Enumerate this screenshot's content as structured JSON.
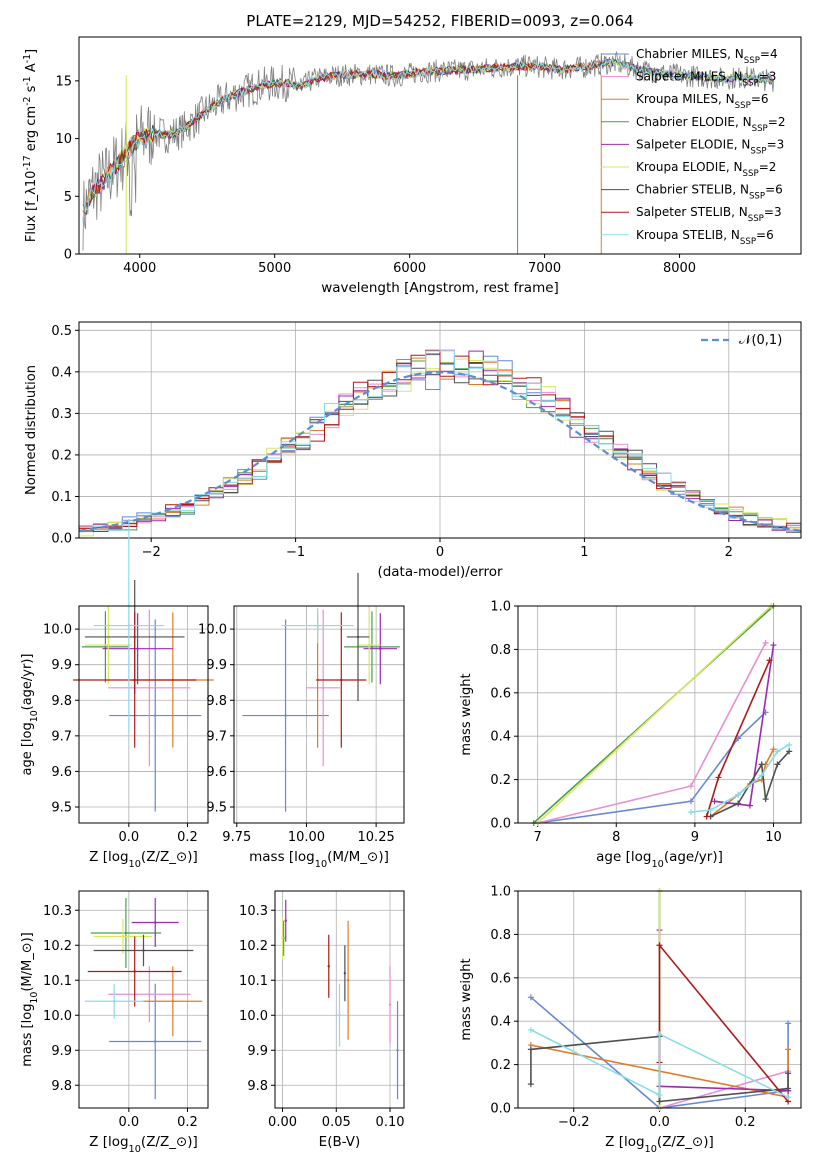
{
  "page_title": "PLATE=2129, MJD=54252, FIBERID=0093, z=0.064",
  "chart_data": [
    {
      "type": "line",
      "id": "spectrum",
      "xlabel": "wavelength [Angstrom, rest frame]",
      "ylabel": "Flux [f$_\\lambda$10$^{-17}$ erg cm$^{-2}$ s$^{-1}$ A$^{-1}$]",
      "xlim": [
        3550,
        8900
      ],
      "ylim": [
        0,
        18.8
      ],
      "x_ticks": [
        "4000",
        "5000",
        "6000",
        "7000",
        "8000"
      ],
      "y_ticks": [
        "0",
        "5",
        "10",
        "15"
      ],
      "grid": false,
      "legend_position": "top-right",
      "data_color": "#808080",
      "data_envelope": [
        {
          "x": 3580,
          "y": 3.5
        },
        {
          "x": 3650,
          "y": 5.5
        },
        {
          "x": 3750,
          "y": 6.5
        },
        {
          "x": 3850,
          "y": 8.0
        },
        {
          "x": 3950,
          "y": 9.5
        },
        {
          "x": 4000,
          "y": 10.0
        },
        {
          "x": 4100,
          "y": 10.5
        },
        {
          "x": 4200,
          "y": 10.3
        },
        {
          "x": 4300,
          "y": 10.6
        },
        {
          "x": 4400,
          "y": 11.5
        },
        {
          "x": 4500,
          "y": 12.5
        },
        {
          "x": 4600,
          "y": 13.2
        },
        {
          "x": 4700,
          "y": 13.8
        },
        {
          "x": 4800,
          "y": 14.2
        },
        {
          "x": 4900,
          "y": 14.6
        },
        {
          "x": 5000,
          "y": 14.8
        },
        {
          "x": 5100,
          "y": 14.8
        },
        {
          "x": 5200,
          "y": 14.5
        },
        {
          "x": 5300,
          "y": 15.2
        },
        {
          "x": 5500,
          "y": 15.5
        },
        {
          "x": 5700,
          "y": 15.6
        },
        {
          "x": 5900,
          "y": 15.4
        },
        {
          "x": 6100,
          "y": 15.8
        },
        {
          "x": 6300,
          "y": 15.9
        },
        {
          "x": 6500,
          "y": 16.0
        },
        {
          "x": 6700,
          "y": 16.2
        },
        {
          "x": 6900,
          "y": 16.3
        },
        {
          "x": 7100,
          "y": 16.0
        },
        {
          "x": 7300,
          "y": 16.2
        },
        {
          "x": 7500,
          "y": 16.6
        },
        {
          "x": 7700,
          "y": 16.0
        },
        {
          "x": 7900,
          "y": 15.6
        },
        {
          "x": 8100,
          "y": 15.4
        },
        {
          "x": 8300,
          "y": 15.2
        },
        {
          "x": 8500,
          "y": 15.3
        },
        {
          "x": 8700,
          "y": 15.0
        }
      ],
      "series": [
        {
          "name": "Chabrier MILES, N$_{SSP}$=4",
          "color": "#6688d6"
        },
        {
          "name": "Salpeter MILES, N$_{SSP}$=3",
          "color": "#e68fd3"
        },
        {
          "name": "Kroupa MILES, N$_{SSP}$=6",
          "color": "#e07b28"
        },
        {
          "name": "Chabrier ELODIE, N$_{SSP}$=2",
          "color": "#4a9e4a"
        },
        {
          "name": "Salpeter ELODIE, N$_{SSP}$=3",
          "color": "#9a2bb0"
        },
        {
          "name": "Kroupa ELODIE, N$_{SSP}$=2",
          "color": "#d5e860"
        },
        {
          "name": "Chabrier STELIB, N$_{SSP}$=6",
          "color": "#505050"
        },
        {
          "name": "Salpeter STELIB, N$_{SSP}$=3",
          "color": "#b01818"
        },
        {
          "name": "Kroupa STELIB, N$_{SSP}$=6",
          "color": "#88dde8"
        }
      ]
    },
    {
      "type": "area",
      "id": "residuals",
      "xlabel": "(data-model)/error",
      "ylabel": "Normed distribution",
      "xlim": [
        -2.5,
        2.5
      ],
      "ylim": [
        0,
        0.52
      ],
      "x_ticks": [
        "−2",
        "−1",
        "0",
        "1",
        "2"
      ],
      "y_ticks": [
        "0.0",
        "0.1",
        "0.2",
        "0.3",
        "0.4",
        "0.5"
      ],
      "grid": true,
      "legend_position": "top-right",
      "reference_curve": {
        "name": "$\\mathcal{N}(0,1)$",
        "color": "#5b8ed6"
      },
      "bin_width": 0.1,
      "bin_start": -2.5
    },
    {
      "type": "scatter",
      "id": "age-vs-Z",
      "xlabel": "Z [log$_{10}$($Z/Z_\\odot$)]",
      "ylabel": "age  [log$_{10}$($age/yr$)]",
      "xlim": [
        -0.17,
        0.27
      ],
      "ylim": [
        9.455,
        10.065
      ],
      "x_ticks": [
        "0.0",
        "0.2"
      ],
      "y_ticks": [
        "9.5",
        "9.6",
        "9.7",
        "9.8",
        "9.9",
        "10.0"
      ],
      "grid": true,
      "points": [
        {
          "x": 0.09,
          "y": 9.757,
          "xerr": 0.157,
          "yerr": 0.27,
          "color": "#6688d6"
        },
        {
          "x": 0.07,
          "y": 9.835,
          "xerr": 0.14,
          "yerr": 0.22,
          "color": "#e68fd3"
        },
        {
          "x": 0.15,
          "y": 9.857,
          "xerr": 0.14,
          "yerr": 0.19,
          "color": "#e07b28"
        },
        {
          "x": -0.08,
          "y": 9.95,
          "xerr": 0.08,
          "yerr": 0.1,
          "color": "#4a9e4a"
        },
        {
          "x": 0.03,
          "y": 9.945,
          "xerr": 0.12,
          "yerr": 0.1,
          "color": "#9a2bb0"
        },
        {
          "x": -0.07,
          "y": 9.955,
          "xerr": 0.08,
          "yerr": 0.11,
          "color": "#d5e860"
        },
        {
          "x": 0.02,
          "y": 9.978,
          "xerr": 0.17,
          "yerr": 0.16,
          "color": "#505050"
        },
        {
          "x": 0.02,
          "y": 9.857,
          "xerr": 0.21,
          "yerr": 0.19,
          "color": "#b01818"
        },
        {
          "x": 0.0,
          "y": 10.01,
          "xerr": 0.12,
          "yerr": 0.3,
          "color": "#88dde8"
        }
      ]
    },
    {
      "type": "scatter",
      "id": "age-vs-mass",
      "xlabel": "mass [log$_{10}$($M/M_\\odot$)]",
      "ylabel": "",
      "xlim": [
        9.74,
        10.35
      ],
      "ylim": [
        9.455,
        10.065
      ],
      "x_ticks": [
        "9.75",
        "10.00",
        "10.25"
      ],
      "y_ticks": [
        "9.5",
        "9.6",
        "9.7",
        "9.8",
        "9.9",
        "10.0"
      ],
      "grid": true,
      "points": [
        {
          "x": 9.925,
          "y": 9.757,
          "xerr": 0.155,
          "yerr": 0.27,
          "color": "#6688d6"
        },
        {
          "x": 10.06,
          "y": 9.835,
          "xerr": 0.06,
          "yerr": 0.22,
          "color": "#e68fd3"
        },
        {
          "x": 10.04,
          "y": 9.857,
          "xerr": 0.0,
          "yerr": 0.19,
          "color": "#e07b28"
        },
        {
          "x": 10.235,
          "y": 9.95,
          "xerr": 0.1,
          "yerr": 0.1,
          "color": "#4a9e4a"
        },
        {
          "x": 10.265,
          "y": 9.945,
          "xerr": 0.06,
          "yerr": 0.1,
          "color": "#9a2bb0"
        },
        {
          "x": 10.225,
          "y": 9.955,
          "xerr": 0.04,
          "yerr": 0.11,
          "color": "#d5e860"
        },
        {
          "x": 10.185,
          "y": 9.978,
          "xerr": 0.04,
          "yerr": 0.18,
          "color": "#505050"
        },
        {
          "x": 10.125,
          "y": 9.857,
          "xerr": 0.09,
          "yerr": 0.19,
          "color": "#b01818"
        },
        {
          "x": 10.04,
          "y": 10.01,
          "xerr": 0.13,
          "yerr": 0.05,
          "color": "#88dde8"
        }
      ]
    },
    {
      "type": "line",
      "id": "massweight-vs-age",
      "xlabel": "age  [log$_{10}$($age/yr$)]",
      "ylabel": "mass weight",
      "xlim": [
        6.75,
        10.35
      ],
      "ylim": [
        0,
        1.0
      ],
      "x_ticks": [
        "7",
        "8",
        "9",
        "10"
      ],
      "y_ticks": [
        "0.0",
        "0.2",
        "0.4",
        "0.6",
        "0.8",
        "1.0"
      ],
      "grid": true,
      "series": [
        {
          "name": "Chabrier MILES",
          "color": "#6688d6",
          "x": [
            7.0,
            8.95,
            9.55,
            9.9
          ],
          "y": [
            0.0,
            0.1,
            0.39,
            0.51
          ]
        },
        {
          "name": "Salpeter MILES",
          "color": "#e68fd3",
          "x": [
            7.0,
            8.95,
            9.9
          ],
          "y": [
            0.0,
            0.17,
            0.83
          ]
        },
        {
          "name": "Kroupa MILES",
          "color": "#e07b28",
          "x": [
            9.2,
            9.55,
            9.7,
            9.85,
            9.9,
            10.0
          ],
          "y": [
            0.03,
            0.13,
            0.18,
            0.2,
            0.27,
            0.34
          ]
        },
        {
          "name": "Chabrier ELODIE",
          "color": "#4a9e4a",
          "x": [
            6.95,
            10.0
          ],
          "y": [
            0.0,
            1.0
          ]
        },
        {
          "name": "Salpeter ELODIE",
          "color": "#9a2bb0",
          "x": [
            9.25,
            9.7,
            10.0
          ],
          "y": [
            0.1,
            0.08,
            0.82
          ]
        },
        {
          "name": "Kroupa ELODIE",
          "color": "#d5e860",
          "x": [
            7.0,
            9.97
          ],
          "y": [
            0.0,
            1.0
          ]
        },
        {
          "name": "Chabrier STELIB",
          "color": "#505050",
          "x": [
            9.2,
            9.55,
            9.85,
            9.9,
            10.05,
            10.2
          ],
          "y": [
            0.03,
            0.09,
            0.27,
            0.11,
            0.27,
            0.33
          ]
        },
        {
          "name": "Salpeter STELIB",
          "color": "#b01818",
          "x": [
            9.15,
            9.3,
            9.95
          ],
          "y": [
            0.03,
            0.21,
            0.75
          ]
        },
        {
          "name": "Kroupa STELIB",
          "color": "#88dde8",
          "x": [
            8.95,
            9.2,
            9.55,
            9.85,
            10.05,
            10.2
          ],
          "y": [
            0.05,
            0.06,
            0.13,
            0.22,
            0.33,
            0.36
          ]
        }
      ]
    },
    {
      "type": "scatter",
      "id": "mass-vs-Z",
      "xlabel": "Z [log$_{10}$($Z/Z_\\odot$)]",
      "ylabel": "mass [log$_{10}$($M/M_\\odot$)]",
      "xlim": [
        -0.17,
        0.27
      ],
      "ylim": [
        9.735,
        10.355
      ],
      "x_ticks": [
        "0.0",
        "0.2"
      ],
      "y_ticks": [
        "9.8",
        "9.9",
        "10.0",
        "10.1",
        "10.2",
        "10.3"
      ],
      "grid": true,
      "points": [
        {
          "x": 0.09,
          "y": 9.925,
          "xerr": 0.157,
          "yerr": 0.165,
          "color": "#6688d6"
        },
        {
          "x": 0.07,
          "y": 10.06,
          "xerr": 0.14,
          "yerr": 0.08,
          "color": "#e68fd3"
        },
        {
          "x": 0.15,
          "y": 10.04,
          "xerr": 0.1,
          "yerr": 0.1,
          "color": "#e07b28"
        },
        {
          "x": -0.01,
          "y": 10.235,
          "xerr": 0.12,
          "yerr": 0.1,
          "color": "#4a9e4a"
        },
        {
          "x": 0.09,
          "y": 10.265,
          "xerr": 0.08,
          "yerr": 0.07,
          "color": "#9a2bb0"
        },
        {
          "x": -0.02,
          "y": 10.225,
          "xerr": 0.1,
          "yerr": 0.05,
          "color": "#d5e860"
        },
        {
          "x": 0.05,
          "y": 10.185,
          "xerr": 0.17,
          "yerr": 0.045,
          "color": "#505050"
        },
        {
          "x": 0.02,
          "y": 10.125,
          "xerr": 0.16,
          "yerr": 0.1,
          "color": "#b01818"
        },
        {
          "x": -0.05,
          "y": 10.04,
          "xerr": 0.1,
          "yerr": 0.05,
          "color": "#88dde8"
        }
      ]
    },
    {
      "type": "scatter",
      "id": "mass-vs-ebv",
      "xlabel": "E(B-V)",
      "ylabel": "",
      "xlim": [
        -0.007,
        0.113
      ],
      "ylim": [
        9.735,
        10.355
      ],
      "x_ticks": [
        "0.00",
        "0.05",
        "0.10"
      ],
      "y_ticks": [
        "9.8",
        "9.9",
        "10.0",
        "10.1",
        "10.2",
        "10.3"
      ],
      "grid": true,
      "points": [
        {
          "x": 0.107,
          "y": 9.9,
          "xerr": 0,
          "yerr": 0.14,
          "color": "#6688d6"
        },
        {
          "x": 0.1,
          "y": 10.03,
          "xerr": 0,
          "yerr": 0.11,
          "color": "#e68fd3"
        },
        {
          "x": 0.061,
          "y": 10.1,
          "xerr": 0,
          "yerr": 0.17,
          "color": "#e07b28"
        },
        {
          "x": 0.001,
          "y": 10.22,
          "xerr": 0,
          "yerr": 0.05,
          "color": "#4a9e4a"
        },
        {
          "x": 0.003,
          "y": 10.27,
          "xerr": 0,
          "yerr": 0.06,
          "color": "#9a2bb0"
        },
        {
          "x": 0.0,
          "y": 10.22,
          "xerr": 0,
          "yerr": 0.06,
          "color": "#d5e860"
        },
        {
          "x": 0.058,
          "y": 10.12,
          "xerr": 0,
          "yerr": 0.08,
          "color": "#505050"
        },
        {
          "x": 0.043,
          "y": 10.14,
          "xerr": 0,
          "yerr": 0.09,
          "color": "#b01818"
        },
        {
          "x": 0.053,
          "y": 10.0,
          "xerr": 0,
          "yerr": 0.09,
          "color": "#88dde8"
        }
      ]
    },
    {
      "type": "line",
      "id": "massweight-vs-Z",
      "xlabel": "Z [log$_{10}$($Z/Z_\\odot$)]",
      "ylabel": "mass weight",
      "xlim": [
        -0.33,
        0.33
      ],
      "ylim": [
        0,
        1.0
      ],
      "x_ticks": [
        "−0.2",
        "0.0",
        "0.2"
      ],
      "y_ticks": [
        "0.0",
        "0.2",
        "0.4",
        "0.6",
        "0.8",
        "1.0"
      ],
      "grid": true,
      "series": [
        {
          "name": "Chabrier MILES",
          "color": "#6688d6",
          "x": [
            -0.3,
            0.0,
            0.0,
            0.3,
            0.3
          ],
          "y": [
            0.51,
            0.0,
            0.0,
            0.08,
            0.39
          ]
        },
        {
          "name": "Salpeter MILES",
          "color": "#e68fd3",
          "x": [
            0.0,
            0.0,
            0.3
          ],
          "y": [
            0.82,
            0.0,
            0.17
          ]
        },
        {
          "name": "Kroupa MILES",
          "color": "#e07b28",
          "x": [
            -0.3,
            0.3,
            0.3
          ],
          "y": [
            0.29,
            0.05,
            0.27
          ]
        },
        {
          "name": "Chabrier ELODIE",
          "color": "#4a9e4a",
          "x": [
            0.0,
            0.0
          ],
          "y": [
            0.0,
            1.0
          ]
        },
        {
          "name": "Salpeter ELODIE",
          "color": "#9a2bb0",
          "x": [
            0.0,
            0.0,
            0.3
          ],
          "y": [
            0.82,
            0.1,
            0.08
          ]
        },
        {
          "name": "Kroupa ELODIE",
          "color": "#d5e860",
          "x": [
            0.0,
            0.0
          ],
          "y": [
            0.0,
            1.0
          ]
        },
        {
          "name": "Chabrier STELIB",
          "color": "#505050",
          "x": [
            -0.3,
            -0.3,
            0.0,
            0.0,
            0.3,
            0.3
          ],
          "y": [
            0.11,
            0.27,
            0.33,
            0.03,
            0.09,
            0.16
          ]
        },
        {
          "name": "Salpeter STELIB",
          "color": "#b01818",
          "x": [
            -0.0,
            0.0,
            0.3
          ],
          "y": [
            0.21,
            0.75,
            0.03
          ]
        },
        {
          "name": "Kroupa STELIB",
          "color": "#88dde8",
          "x": [
            -0.3,
            0.0,
            0.0,
            0.3
          ],
          "y": [
            0.36,
            0.06,
            0.34,
            0.05
          ]
        }
      ]
    }
  ]
}
